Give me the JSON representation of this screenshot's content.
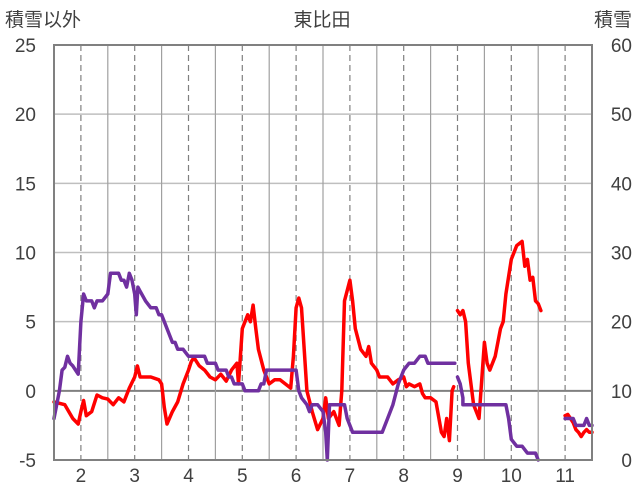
{
  "chart_data": {
    "type": "line",
    "title": "東比田",
    "left_axis_label": "積雪以外",
    "right_axis_label": "積雪",
    "x_ticks": [
      "2",
      "3",
      "4",
      "5",
      "6",
      "7",
      "8",
      "9",
      "10",
      "11"
    ],
    "x_range": [
      1.5,
      11.5
    ],
    "left_ylim": [
      -5,
      25
    ],
    "left_ticks": [
      "25",
      "20",
      "15",
      "10",
      "5",
      "0",
      "-5"
    ],
    "right_ylim": [
      0,
      60
    ],
    "right_ticks": [
      "60",
      "50",
      "40",
      "30",
      "20",
      "10",
      "0"
    ],
    "grid": true,
    "colors": {
      "red": "#ff0000",
      "purple": "#7030a0",
      "grid": "#808080",
      "frame": "#808080"
    },
    "series": [
      {
        "axis": "left",
        "color": "#ff0000",
        "segments": [
          [
            [
              1.5,
              -0.8
            ],
            [
              1.7,
              -1.0
            ],
            [
              1.85,
              -2.0
            ],
            [
              1.95,
              -2.4
            ],
            [
              2.0,
              -1.5
            ],
            [
              2.05,
              -0.7
            ],
            [
              2.1,
              -1.8
            ],
            [
              2.2,
              -1.5
            ],
            [
              2.3,
              -0.3
            ],
            [
              2.4,
              -0.5
            ],
            [
              2.5,
              -0.6
            ],
            [
              2.6,
              -1.0
            ],
            [
              2.7,
              -0.5
            ],
            [
              2.8,
              -0.8
            ],
            [
              2.9,
              0.2
            ],
            [
              3.0,
              1.0
            ],
            [
              3.05,
              1.8
            ],
            [
              3.1,
              1.0
            ],
            [
              3.3,
              1.0
            ],
            [
              3.45,
              0.8
            ],
            [
              3.5,
              0.5
            ],
            [
              3.55,
              -1.2
            ],
            [
              3.6,
              -2.4
            ],
            [
              3.7,
              -1.5
            ],
            [
              3.8,
              -0.8
            ],
            [
              3.9,
              0.5
            ],
            [
              4.0,
              1.5
            ],
            [
              4.05,
              2.1
            ],
            [
              4.1,
              2.4
            ],
            [
              4.2,
              1.8
            ],
            [
              4.3,
              1.5
            ],
            [
              4.4,
              1.0
            ],
            [
              4.5,
              0.8
            ],
            [
              4.6,
              1.2
            ],
            [
              4.7,
              0.7
            ],
            [
              4.8,
              1.5
            ],
            [
              4.9,
              2.0
            ],
            [
              4.93,
              0.5
            ],
            [
              5.0,
              4.5
            ],
            [
              5.1,
              5.5
            ],
            [
              5.15,
              5.0
            ],
            [
              5.2,
              6.2
            ],
            [
              5.25,
              4.5
            ],
            [
              5.3,
              3.0
            ],
            [
              5.4,
              1.5
            ],
            [
              5.5,
              0.5
            ],
            [
              5.6,
              0.8
            ],
            [
              5.7,
              0.8
            ],
            [
              5.8,
              0.5
            ],
            [
              5.9,
              0.2
            ],
            [
              5.95,
              2.5
            ],
            [
              6.0,
              6.0
            ],
            [
              6.05,
              6.7
            ],
            [
              6.1,
              6.0
            ],
            [
              6.15,
              3.0
            ],
            [
              6.2,
              0.0
            ],
            [
              6.3,
              -1.5
            ],
            [
              6.4,
              -2.8
            ],
            [
              6.5,
              -2.0
            ],
            [
              6.55,
              -0.5
            ],
            [
              6.6,
              -2.0
            ],
            [
              6.7,
              -1.5
            ],
            [
              6.8,
              -2.5
            ],
            [
              6.85,
              0.0
            ],
            [
              6.9,
              6.5
            ],
            [
              7.0,
              8.0
            ],
            [
              7.05,
              6.5
            ],
            [
              7.1,
              4.5
            ],
            [
              7.2,
              3.0
            ],
            [
              7.3,
              2.5
            ],
            [
              7.35,
              3.2
            ],
            [
              7.4,
              2.0
            ],
            [
              7.5,
              1.5
            ],
            [
              7.55,
              1.0
            ],
            [
              7.6,
              1.0
            ],
            [
              7.7,
              1.0
            ],
            [
              7.8,
              0.5
            ],
            [
              7.9,
              0.8
            ],
            [
              8.0,
              1.0
            ],
            [
              8.05,
              0.3
            ],
            [
              8.1,
              0.5
            ],
            [
              8.2,
              0.3
            ],
            [
              8.3,
              0.5
            ],
            [
              8.35,
              -0.2
            ],
            [
              8.4,
              -0.5
            ],
            [
              8.5,
              -0.5
            ],
            [
              8.6,
              -0.8
            ],
            [
              8.7,
              -3.0
            ],
            [
              8.75,
              -3.3
            ],
            [
              8.8,
              -2.0
            ],
            [
              8.85,
              -3.6
            ],
            [
              8.9,
              0.0
            ],
            [
              8.93,
              0.3
            ]
          ],
          [
            [
              9.0,
              5.8
            ],
            [
              9.05,
              5.5
            ],
            [
              9.1,
              5.8
            ],
            [
              9.15,
              5.0
            ],
            [
              9.2,
              2.0
            ],
            [
              9.3,
              -1.0
            ],
            [
              9.4,
              -2.0
            ],
            [
              9.5,
              3.5
            ],
            [
              9.55,
              2.0
            ],
            [
              9.6,
              1.5
            ],
            [
              9.7,
              2.5
            ],
            [
              9.8,
              4.5
            ],
            [
              9.85,
              5.0
            ],
            [
              9.9,
              7.0
            ],
            [
              10.0,
              9.5
            ],
            [
              10.1,
              10.5
            ],
            [
              10.2,
              10.8
            ],
            [
              10.25,
              9.0
            ],
            [
              10.3,
              9.5
            ],
            [
              10.35,
              8.0
            ],
            [
              10.4,
              8.2
            ],
            [
              10.45,
              6.5
            ],
            [
              10.5,
              6.3
            ],
            [
              10.55,
              5.8
            ]
          ],
          [
            [
              11.0,
              -1.8
            ],
            [
              11.05,
              -1.7
            ],
            [
              11.1,
              -2.0
            ],
            [
              11.15,
              -2.3
            ],
            [
              11.2,
              -2.8
            ],
            [
              11.25,
              -3.0
            ],
            [
              11.3,
              -3.3
            ],
            [
              11.35,
              -3.0
            ],
            [
              11.4,
              -2.8
            ],
            [
              11.45,
              -3.0
            ],
            [
              11.5,
              -3.0
            ]
          ]
        ]
      },
      {
        "axis": "left",
        "color": "#7030a0",
        "segments": [
          [
            [
              1.5,
              -2.0
            ],
            [
              1.6,
              0.0
            ],
            [
              1.65,
              1.5
            ],
            [
              1.7,
              1.7
            ],
            [
              1.75,
              2.5
            ],
            [
              1.8,
              2.0
            ],
            [
              1.85,
              1.8
            ],
            [
              1.9,
              1.5
            ],
            [
              1.95,
              1.2
            ],
            [
              2.0,
              5.0
            ],
            [
              2.05,
              7.0
            ],
            [
              2.1,
              6.5
            ],
            [
              2.2,
              6.5
            ],
            [
              2.25,
              6.0
            ],
            [
              2.3,
              6.5
            ],
            [
              2.4,
              6.5
            ],
            [
              2.5,
              7.0
            ],
            [
              2.55,
              8.5
            ],
            [
              2.7,
              8.5
            ],
            [
              2.75,
              8.0
            ],
            [
              2.8,
              8.0
            ],
            [
              2.85,
              7.5
            ],
            [
              2.9,
              8.5
            ],
            [
              2.95,
              8.0
            ],
            [
              3.0,
              7.0
            ],
            [
              3.03,
              5.5
            ],
            [
              3.06,
              7.5
            ],
            [
              3.1,
              7.2
            ],
            [
              3.2,
              6.5
            ],
            [
              3.3,
              6.0
            ],
            [
              3.4,
              6.0
            ],
            [
              3.45,
              5.5
            ],
            [
              3.5,
              5.5
            ],
            [
              3.55,
              5.0
            ],
            [
              3.6,
              4.5
            ],
            [
              3.7,
              3.5
            ],
            [
              3.75,
              3.5
            ],
            [
              3.8,
              3.0
            ],
            [
              3.9,
              3.0
            ],
            [
              4.0,
              2.5
            ],
            [
              4.3,
              2.5
            ],
            [
              4.35,
              2.0
            ],
            [
              4.5,
              2.0
            ],
            [
              4.55,
              1.5
            ],
            [
              4.7,
              1.5
            ],
            [
              4.75,
              1.0
            ],
            [
              4.8,
              1.0
            ],
            [
              4.85,
              0.5
            ],
            [
              5.0,
              0.5
            ],
            [
              5.05,
              0.0
            ],
            [
              5.3,
              0.0
            ],
            [
              5.35,
              0.5
            ],
            [
              5.4,
              0.5
            ],
            [
              5.45,
              1.5
            ],
            [
              5.95,
              1.5
            ],
            [
              6.0,
              1.5
            ],
            [
              6.05,
              0.0
            ],
            [
              6.1,
              -0.5
            ],
            [
              6.2,
              -1.0
            ],
            [
              6.25,
              -1.5
            ],
            [
              6.3,
              -1.0
            ],
            [
              6.4,
              -1.0
            ],
            [
              6.5,
              -1.5
            ],
            [
              6.55,
              -3.0
            ],
            [
              6.58,
              -5.0
            ],
            [
              6.62,
              -1.0
            ],
            [
              6.9,
              -1.0
            ],
            [
              6.95,
              -2.0
            ],
            [
              7.05,
              -3.0
            ],
            [
              7.6,
              -3.0
            ],
            [
              7.7,
              -2.0
            ],
            [
              7.8,
              -1.0
            ],
            [
              7.9,
              0.5
            ],
            [
              8.0,
              1.5
            ],
            [
              8.1,
              2.0
            ],
            [
              8.2,
              2.0
            ],
            [
              8.3,
              2.5
            ],
            [
              8.4,
              2.5
            ],
            [
              8.45,
              2.0
            ],
            [
              8.95,
              2.0
            ]
          ],
          [
            [
              9.0,
              1.0
            ],
            [
              9.05,
              0.5
            ],
            [
              9.1,
              -0.5
            ],
            [
              9.1,
              -1.0
            ],
            [
              9.9,
              -1.0
            ],
            [
              9.95,
              -2.0
            ],
            [
              10.0,
              -3.5
            ],
            [
              10.1,
              -4.0
            ],
            [
              10.2,
              -4.0
            ],
            [
              10.3,
              -4.5
            ],
            [
              10.45,
              -4.5
            ],
            [
              10.5,
              -5.0
            ]
          ],
          [
            [
              11.0,
              -2.0
            ],
            [
              11.15,
              -2.0
            ],
            [
              11.2,
              -2.5
            ],
            [
              11.35,
              -2.5
            ],
            [
              11.4,
              -2.0
            ],
            [
              11.45,
              -2.5
            ],
            [
              11.5,
              -2.5
            ]
          ]
        ]
      }
    ]
  }
}
